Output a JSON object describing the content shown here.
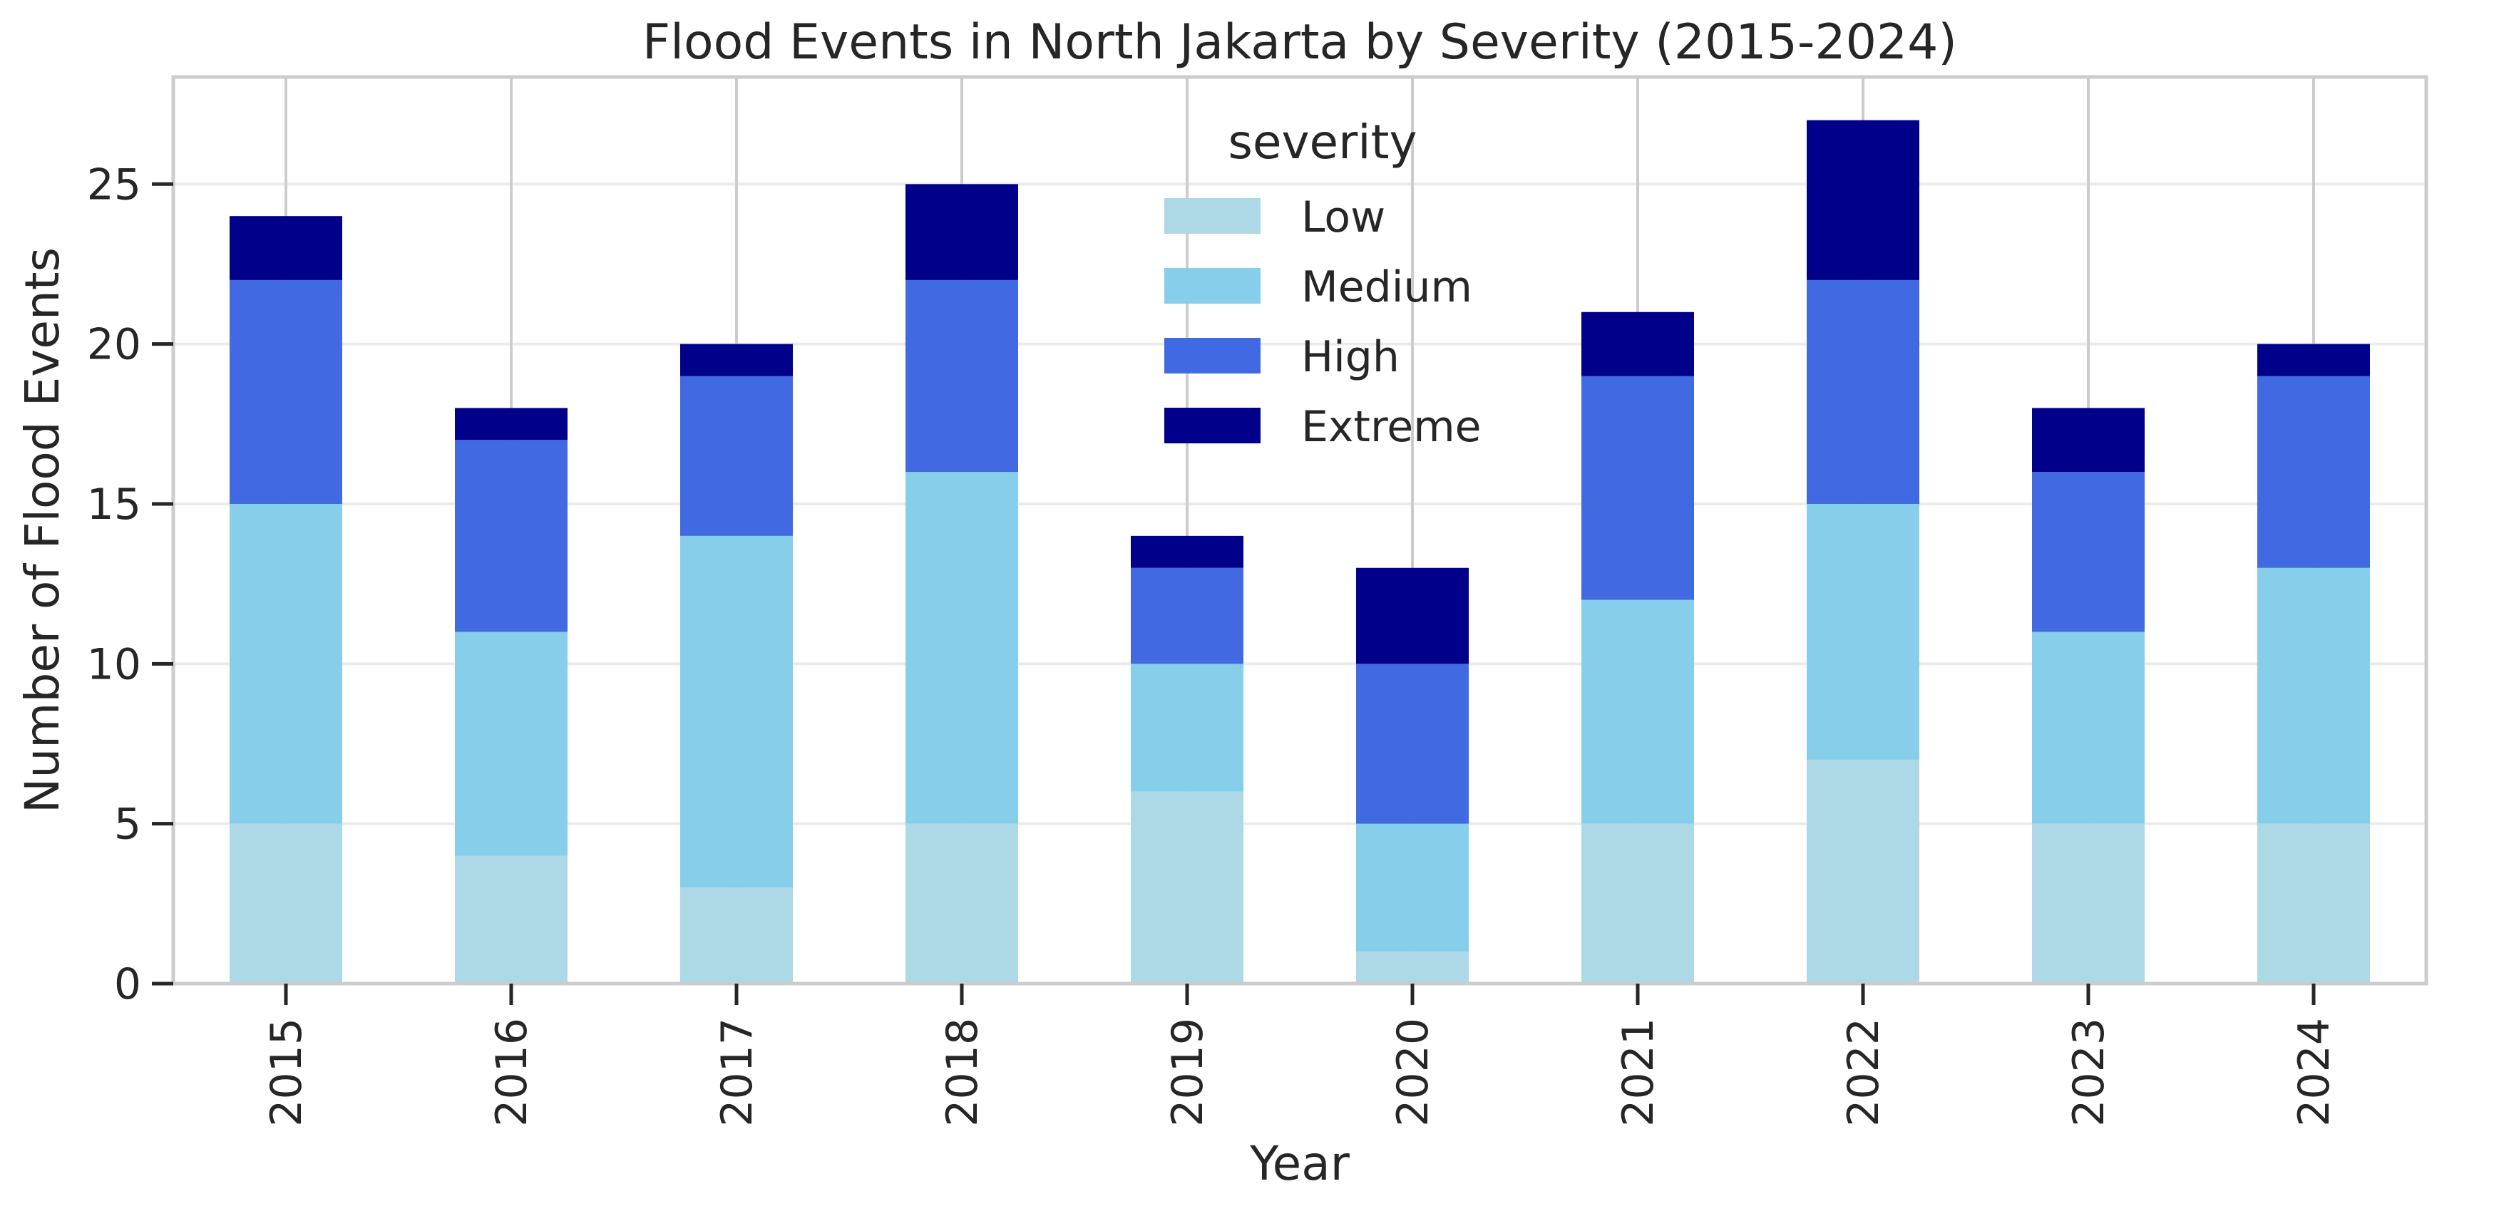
{
  "chart_data": {
    "type": "bar",
    "stacked": true,
    "title": "Flood Events in North Jakarta by Severity (2015-2024)",
    "xlabel": "Year",
    "ylabel": "Number of Flood Events",
    "categories": [
      "2015",
      "2016",
      "2017",
      "2018",
      "2019",
      "2020",
      "2021",
      "2022",
      "2023",
      "2024"
    ],
    "series": [
      {
        "name": "Low",
        "color": "#add8e6",
        "values": [
          5,
          4,
          3,
          5,
          6,
          1,
          5,
          7,
          5,
          5
        ]
      },
      {
        "name": "Medium",
        "color": "#87ceeb",
        "values": [
          10,
          7,
          11,
          11,
          4,
          4,
          7,
          8,
          6,
          8
        ]
      },
      {
        "name": "High",
        "color": "#4169e1",
        "values": [
          7,
          6,
          5,
          6,
          3,
          5,
          7,
          7,
          5,
          6
        ]
      },
      {
        "name": "Extreme",
        "color": "#00008b",
        "values": [
          2,
          1,
          1,
          3,
          1,
          3,
          2,
          5,
          2,
          1
        ]
      }
    ],
    "ylim": [
      0,
      28.35
    ],
    "yticks": [
      "0",
      "5",
      "10",
      "15",
      "20",
      "25"
    ],
    "legend": {
      "title": "severity",
      "placement": "top-center"
    },
    "grid": true
  }
}
